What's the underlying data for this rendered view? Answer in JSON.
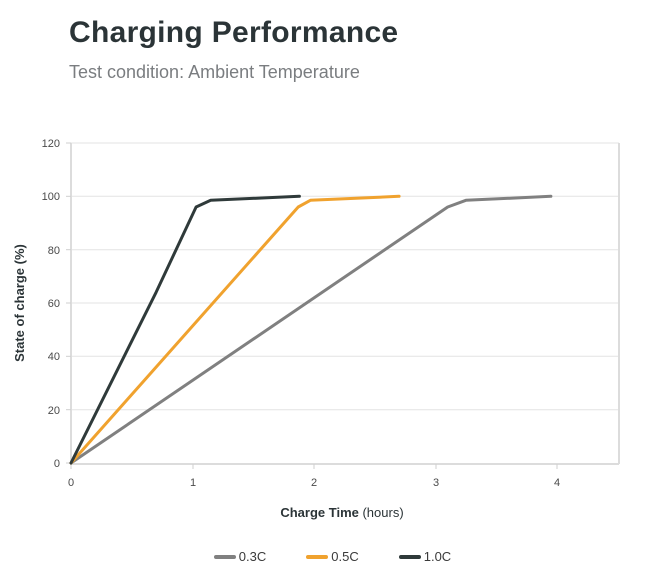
{
  "header": {
    "title": "Charging Performance",
    "subtitle": "Test condition: Ambient Temperature"
  },
  "axes": {
    "x_label_bold": "Charge Time",
    "x_label_unit": " (hours)",
    "y_label": "State of charge (%)",
    "x_ticks": [
      "0",
      "1",
      "2",
      "3",
      "4"
    ],
    "y_ticks": [
      "0",
      "20",
      "40",
      "60",
      "80",
      "100",
      "120"
    ]
  },
  "legend": [
    {
      "label": "0.3C",
      "color": "#808080"
    },
    {
      "label": "0.5C",
      "color": "#f0a22e"
    },
    {
      "label": "1.0C",
      "color": "#2f3a3a"
    }
  ],
  "chart_data": {
    "type": "line",
    "title": "Charging Performance",
    "subtitle": "Test condition: Ambient Temperature",
    "xlabel": "Charge Time (hours)",
    "ylabel": "State of charge (%)",
    "xlim": [
      0,
      4.5
    ],
    "ylim": [
      0,
      120
    ],
    "x_ticks": [
      0,
      1,
      2,
      3,
      4
    ],
    "y_ticks": [
      0,
      20,
      40,
      60,
      80,
      100,
      120
    ],
    "grid": "horizontal",
    "legend_position": "bottom",
    "series": [
      {
        "name": "0.3C",
        "color": "#808080",
        "x": [
          0,
          3.1,
          3.25,
          3.95
        ],
        "y": [
          0,
          96,
          98.5,
          100
        ]
      },
      {
        "name": "0.5C",
        "color": "#f0a22e",
        "x": [
          0,
          1.87,
          1.97,
          2.7
        ],
        "y": [
          0,
          96,
          98.5,
          100
        ]
      },
      {
        "name": "1.0C",
        "color": "#2f3a3a",
        "x": [
          0,
          0.7,
          1.03,
          1.15,
          1.88
        ],
        "y": [
          0,
          64,
          96,
          98.5,
          100
        ]
      }
    ]
  }
}
